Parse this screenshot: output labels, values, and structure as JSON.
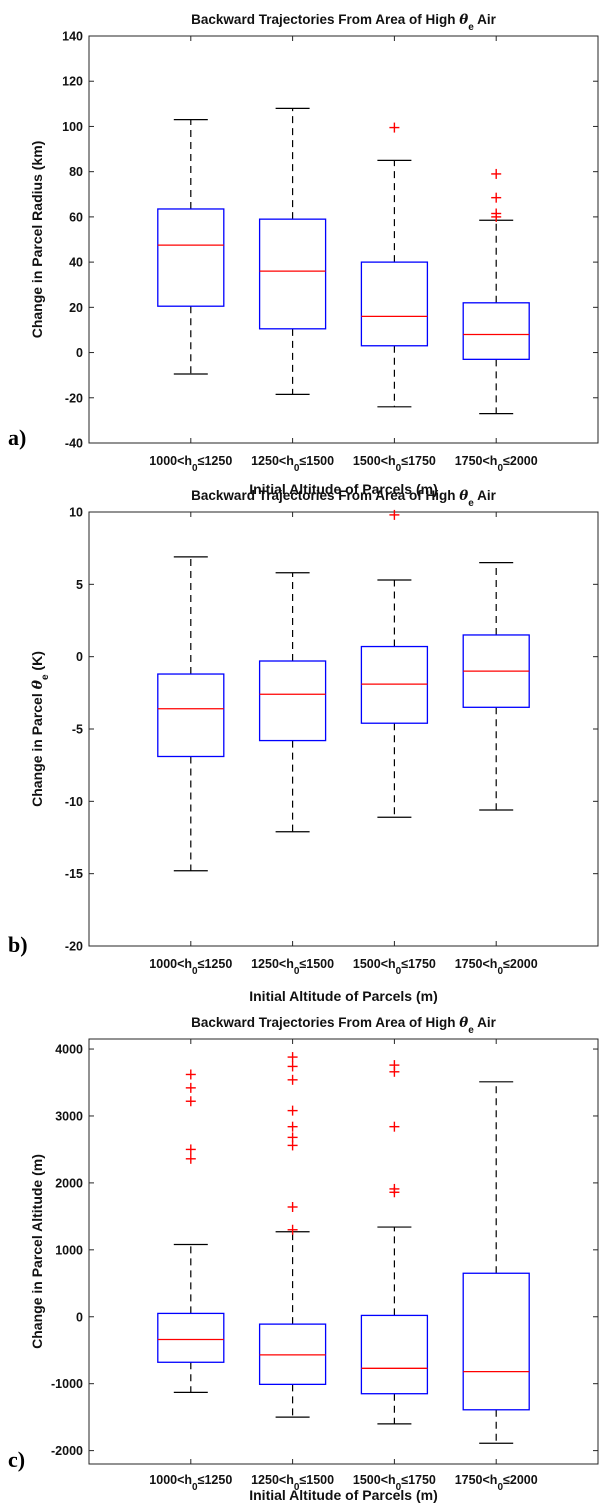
{
  "figure": {
    "panels": [
      {
        "letter": "a)",
        "title_prefix": "Backward Trajectories From Area of High ",
        "title_symbol": "θ",
        "title_subscript": "e",
        "title_suffix": " Air",
        "ylabel": "Change in Parcel Radius (km)",
        "ylabel_symbol": "",
        "ylabel_subscript": "",
        "ylabel_suffix": "",
        "xlabel": "Initial Altitude of Parcels (m)"
      },
      {
        "letter": "b)",
        "title_prefix": "Backward Trajectories From Area of High ",
        "title_symbol": "θ",
        "title_subscript": "e",
        "title_suffix": " Air",
        "ylabel": "Change in Parcel ",
        "ylabel_symbol": "θ",
        "ylabel_subscript": "e",
        "ylabel_suffix": " (K)",
        "xlabel": "Initial Altitude of Parcels (m)"
      },
      {
        "letter": "c)",
        "title_prefix": "Backward Trajectories From Area of High ",
        "title_symbol": "θ",
        "title_subscript": "e",
        "title_suffix": " Air",
        "ylabel": "Change in Parcel Altitude (m)",
        "ylabel_symbol": "",
        "ylabel_subscript": "",
        "ylabel_suffix": "",
        "xlabel": "Initial Altitude of Parcels (m)"
      }
    ]
  },
  "chart_data": [
    {
      "type": "boxplot",
      "categories": [
        {
          "pre": "1000<h",
          "sub": "0",
          "post": "≤1250"
        },
        {
          "pre": "1250<h",
          "sub": "0",
          "post": "≤1500"
        },
        {
          "pre": "1500<h",
          "sub": "0",
          "post": "≤1750"
        },
        {
          "pre": "1750<h",
          "sub": "0",
          "post": "≤2000"
        }
      ],
      "ylim": [
        -40,
        140
      ],
      "yticks": [
        -40,
        -20,
        0,
        20,
        40,
        60,
        80,
        100,
        120,
        140
      ],
      "boxes": [
        {
          "whisker_low": -9.5,
          "q1": 20.5,
          "median": 47.5,
          "q3": 63.5,
          "whisker_high": 103,
          "outliers": []
        },
        {
          "whisker_low": -18.5,
          "q1": 10.5,
          "median": 36,
          "q3": 59,
          "whisker_high": 108,
          "outliers": []
        },
        {
          "whisker_low": -24,
          "q1": 3,
          "median": 16,
          "q3": 40,
          "whisker_high": 85,
          "outliers": [
            99.5
          ]
        },
        {
          "whisker_low": -27,
          "q1": -3,
          "median": 8,
          "q3": 22,
          "whisker_high": 58.5,
          "outliers": [
            60,
            61.5,
            68.5,
            79
          ]
        }
      ],
      "colors": {
        "box": "#0000ff",
        "median": "#ff0000",
        "whisker": "#000000",
        "outlier": "#ff0000"
      }
    },
    {
      "type": "boxplot",
      "categories": [
        {
          "pre": "1000<h",
          "sub": "0",
          "post": "≤1250"
        },
        {
          "pre": "1250<h",
          "sub": "0",
          "post": "≤1500"
        },
        {
          "pre": "1500<h",
          "sub": "0",
          "post": "≤1750"
        },
        {
          "pre": "1750<h",
          "sub": "0",
          "post": "≤2000"
        }
      ],
      "ylim": [
        -20,
        10
      ],
      "yticks": [
        -20,
        -15,
        -10,
        -5,
        0,
        5,
        10
      ],
      "boxes": [
        {
          "whisker_low": -14.8,
          "q1": -6.9,
          "median": -3.6,
          "q3": -1.2,
          "whisker_high": 6.9,
          "outliers": []
        },
        {
          "whisker_low": -12.1,
          "q1": -5.8,
          "median": -2.6,
          "q3": -0.3,
          "whisker_high": 5.8,
          "outliers": []
        },
        {
          "whisker_low": -11.1,
          "q1": -4.6,
          "median": -1.9,
          "q3": 0.7,
          "whisker_high": 5.3,
          "outliers": [
            9.8
          ]
        },
        {
          "whisker_low": -10.6,
          "q1": -3.5,
          "median": -1.0,
          "q3": 1.5,
          "whisker_high": 6.5,
          "outliers": []
        }
      ],
      "colors": {
        "box": "#0000ff",
        "median": "#ff0000",
        "whisker": "#000000",
        "outlier": "#ff0000"
      }
    },
    {
      "type": "boxplot",
      "categories": [
        {
          "pre": "1000<h",
          "sub": "0",
          "post": "≤1250"
        },
        {
          "pre": "1250<h",
          "sub": "0",
          "post": "≤1500"
        },
        {
          "pre": "1500<h",
          "sub": "0",
          "post": "≤1750"
        },
        {
          "pre": "1750<h",
          "sub": "0",
          "post": "≤2000"
        }
      ],
      "ylim": [
        -2200,
        4150
      ],
      "yticks": [
        -2000,
        -1000,
        0,
        1000,
        2000,
        3000,
        4000
      ],
      "boxes": [
        {
          "whisker_low": -1130,
          "q1": -680,
          "median": -340,
          "q3": 50,
          "whisker_high": 1080,
          "outliers": [
            2360,
            2500,
            3220,
            3420,
            3620
          ]
        },
        {
          "whisker_low": -1500,
          "q1": -1010,
          "median": -570,
          "q3": -110,
          "whisker_high": 1270,
          "outliers": [
            1300,
            1640,
            2560,
            2680,
            2840,
            3080,
            3540,
            3740,
            3880
          ]
        },
        {
          "whisker_low": -1600,
          "q1": -1150,
          "median": -770,
          "q3": 20,
          "whisker_high": 1340,
          "outliers": [
            1860,
            1910,
            2840,
            3660,
            3760
          ]
        },
        {
          "whisker_low": -1890,
          "q1": -1390,
          "median": -820,
          "q3": 650,
          "whisker_high": 3510,
          "outliers": []
        }
      ],
      "colors": {
        "box": "#0000ff",
        "median": "#ff0000",
        "whisker": "#000000",
        "outlier": "#ff0000"
      }
    }
  ]
}
